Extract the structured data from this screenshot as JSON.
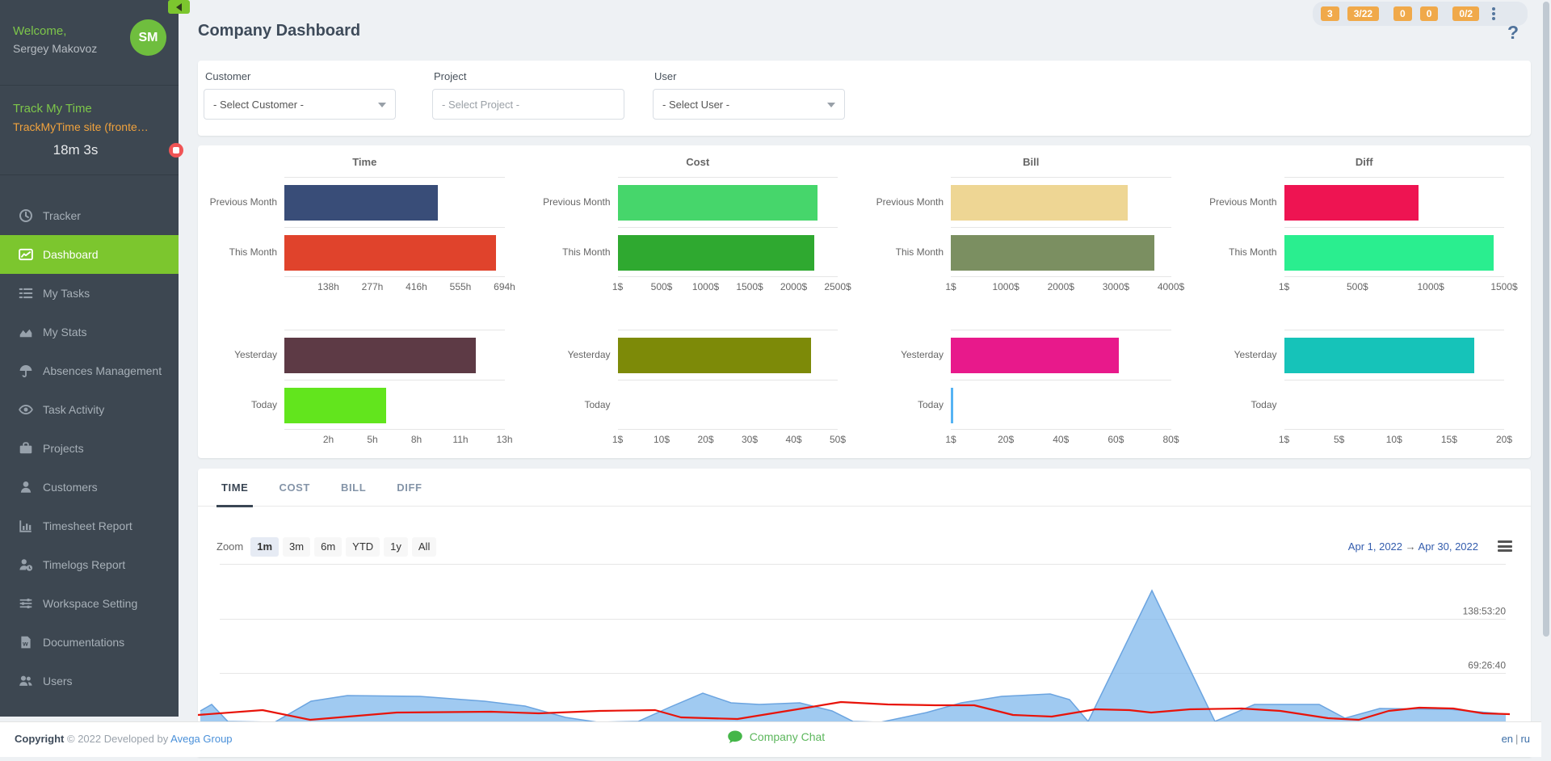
{
  "sidebar": {
    "welcome": "Welcome,",
    "user_name": "Sergey Makovoz",
    "avatar_initials": "SM",
    "project_name": "Track My Time",
    "task_name": "TrackMyTime site (fronte…",
    "timer": "18m 3s",
    "items": [
      {
        "label": "Tracker",
        "icon": "clock-icon",
        "active": false
      },
      {
        "label": "Dashboard",
        "icon": "dashboard-chart-icon",
        "active": true
      },
      {
        "label": "My Tasks",
        "icon": "tasks-list-icon",
        "active": false
      },
      {
        "label": "My Stats",
        "icon": "stats-area-icon",
        "active": false
      },
      {
        "label": "Absences Management",
        "icon": "umbrella-icon",
        "active": false
      },
      {
        "label": "Task Activity",
        "icon": "eye-icon",
        "active": false
      },
      {
        "label": "Projects",
        "icon": "briefcase-icon",
        "active": false
      },
      {
        "label": "Customers",
        "icon": "customer-icon",
        "active": false
      },
      {
        "label": "Timesheet Report",
        "icon": "bar-chart-icon",
        "active": false
      },
      {
        "label": "Timelogs Report",
        "icon": "user-clock-icon",
        "active": false
      },
      {
        "label": "Workspace Setting",
        "icon": "sliders-icon",
        "active": false
      },
      {
        "label": "Documentations",
        "icon": "document-icon",
        "active": false
      },
      {
        "label": "Users",
        "icon": "users-icon",
        "active": false
      }
    ]
  },
  "header": {
    "title": "Company Dashboard",
    "badges": [
      "3",
      "3/22",
      "0",
      "0",
      "0/2"
    ],
    "help": "?"
  },
  "filters": [
    {
      "label": "Customer",
      "value": "- Select Customer -",
      "has_caret": true,
      "is_placeholder": false
    },
    {
      "label": "Project",
      "value": "- Select Project -",
      "has_caret": false,
      "is_placeholder": true
    },
    {
      "label": "User",
      "value": "- Select User -",
      "has_caret": true,
      "is_placeholder": false
    }
  ],
  "chart_data": {
    "bar_groups": [
      {
        "type": "bar",
        "title": "Time",
        "orientation": "horizontal",
        "subcharts": [
          {
            "categories": [
              "Previous Month",
              "This Month"
            ],
            "values": [
              485,
              667
            ],
            "unit": "h",
            "colors": [
              "#394d78",
              "#e0432c"
            ],
            "ticks": [
              "138h",
              "277h",
              "416h",
              "555h",
              "694h"
            ],
            "max": 694,
            "first_tick_at_zero": false
          },
          {
            "categories": [
              "Yesterday",
              "Today"
            ],
            "values": [
              11.3,
              6
            ],
            "unit": "h",
            "colors": [
              "#5d3a45",
              "#62e51d"
            ],
            "ticks": [
              "2h",
              "5h",
              "8h",
              "11h",
              "13h"
            ],
            "max": 13,
            "first_tick_at_zero": false
          }
        ]
      },
      {
        "type": "bar",
        "title": "Cost",
        "orientation": "horizontal",
        "subcharts": [
          {
            "categories": [
              "Previous Month",
              "This Month"
            ],
            "values": [
              2270,
              2230
            ],
            "unit": "$",
            "colors": [
              "#46d66b",
              "#2fa930"
            ],
            "ticks": [
              "1$",
              "500$",
              "1000$",
              "1500$",
              "2000$",
              "2500$"
            ],
            "max": 2500,
            "first_tick_at_zero": true
          },
          {
            "categories": [
              "Yesterday",
              "Today"
            ],
            "values": [
              44,
              0
            ],
            "unit": "$",
            "colors": [
              "#7d8a08",
              "#7d8a08"
            ],
            "ticks": [
              "1$",
              "10$",
              "20$",
              "30$",
              "40$",
              "50$"
            ],
            "max": 50,
            "first_tick_at_zero": true
          }
        ]
      },
      {
        "type": "bar",
        "title": "Bill",
        "orientation": "horizontal",
        "subcharts": [
          {
            "categories": [
              "Previous Month",
              "This Month"
            ],
            "values": [
              3210,
              3700
            ],
            "unit": "$",
            "colors": [
              "#eed694",
              "#7b8f61"
            ],
            "ticks": [
              "1$",
              "1000$",
              "2000$",
              "3000$",
              "4000$"
            ],
            "max": 4000,
            "first_tick_at_zero": true
          },
          {
            "categories": [
              "Yesterday",
              "Today"
            ],
            "values": [
              61,
              1
            ],
            "unit": "$",
            "colors": [
              "#e8198b",
              "#55b3f3"
            ],
            "ticks": [
              "1$",
              "20$",
              "40$",
              "60$",
              "80$"
            ],
            "max": 80,
            "first_tick_at_zero": true
          }
        ]
      },
      {
        "type": "bar",
        "title": "Diff",
        "orientation": "horizontal",
        "subcharts": [
          {
            "categories": [
              "Previous Month",
              "This Month"
            ],
            "values": [
              915,
              1430
            ],
            "unit": "$",
            "colors": [
              "#ee1452",
              "#2aee8f"
            ],
            "ticks": [
              "1$",
              "500$",
              "1000$",
              "1500$"
            ],
            "max": 1500,
            "first_tick_at_zero": true
          },
          {
            "categories": [
              "Yesterday",
              "Today"
            ],
            "values": [
              17.3,
              0
            ],
            "unit": "$",
            "colors": [
              "#16c3b9",
              "#16c3b9"
            ],
            "ticks": [
              "1$",
              "5$",
              "10$",
              "15$",
              "20$"
            ],
            "max": 20,
            "first_tick_at_zero": true
          }
        ]
      }
    ],
    "timeline": {
      "type": "area",
      "title": "",
      "x_range": [
        "Apr 1, 2022",
        "Apr 30, 2022"
      ],
      "y_tick_labels": [
        "138:53:20",
        "69:26:40"
      ],
      "grid": true,
      "legend": false,
      "series": [
        {
          "name": "time-area",
          "type": "area",
          "color": "#7cb5ec",
          "stroke": "#6ba4e0",
          "points": [
            [
              3,
              190
            ],
            [
              17,
              182
            ],
            [
              37,
              203
            ],
            [
              95,
              204
            ],
            [
              140,
              178
            ],
            [
              185,
              171
            ],
            [
              275,
              172
            ],
            [
              355,
              178
            ],
            [
              405,
              184
            ],
            [
              455,
              198
            ],
            [
              495,
              204
            ],
            [
              545,
              203
            ],
            [
              585,
              185
            ],
            [
              625,
              168
            ],
            [
              660,
              180
            ],
            [
              695,
              182
            ],
            [
              745,
              180
            ],
            [
              785,
              190
            ],
            [
              811,
              203
            ],
            [
              845,
              204
            ],
            [
              902,
              192
            ],
            [
              945,
              180
            ],
            [
              995,
              172
            ],
            [
              1055,
              169
            ],
            [
              1079,
              176
            ],
            [
              1102,
              203
            ],
            [
              1181,
              41
            ],
            [
              1259,
              203
            ],
            [
              1308,
              182
            ],
            [
              1388,
              182
            ],
            [
              1420,
              199
            ],
            [
              1463,
              187
            ],
            [
              1549,
              188
            ],
            [
              1619,
              194
            ]
          ]
        },
        {
          "name": "red-line",
          "type": "line",
          "color": "#e81309",
          "points": [
            [
              0,
              195
            ],
            [
              80,
              189
            ],
            [
              139,
              201
            ],
            [
              246,
              192
            ],
            [
              363,
              191
            ],
            [
              422,
              193
            ],
            [
              497,
              190
            ],
            [
              566,
              189
            ],
            [
              598,
              198
            ],
            [
              668,
              200
            ],
            [
              748,
              187
            ],
            [
              796,
              179
            ],
            [
              854,
              182
            ],
            [
              913,
              183
            ],
            [
              961,
              183
            ],
            [
              1009,
              195
            ],
            [
              1057,
              197
            ],
            [
              1111,
              188
            ],
            [
              1153,
              189
            ],
            [
              1180,
              192
            ],
            [
              1228,
              188
            ],
            [
              1292,
              187
            ],
            [
              1340,
              190
            ],
            [
              1399,
              199
            ],
            [
              1437,
              201
            ],
            [
              1474,
              190
            ],
            [
              1512,
              186
            ],
            [
              1554,
              187
            ],
            [
              1591,
              193
            ],
            [
              1624,
              194
            ]
          ]
        }
      ]
    }
  },
  "tabs": [
    {
      "label": "TIME",
      "active": true
    },
    {
      "label": "COST",
      "active": false
    },
    {
      "label": "BILL",
      "active": false
    },
    {
      "label": "DIFF",
      "active": false
    }
  ],
  "zoom": {
    "label": "Zoom",
    "options": [
      "1m",
      "3m",
      "6m",
      "YTD",
      "1y",
      "All"
    ],
    "active": "1m"
  },
  "date_range": {
    "from": "Apr 1, 2022",
    "arrow": "→",
    "to": "Apr 30, 2022"
  },
  "footer": {
    "copyright_bold": "Copyright",
    "copyright_rest": "© 2022 Developed by",
    "developer_link": "Avega Group",
    "chat_label": "Company Chat",
    "lang_en": "en",
    "lang_sep": "|",
    "lang_ru": "ru"
  }
}
